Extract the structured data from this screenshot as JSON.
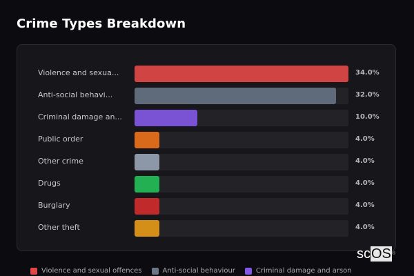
{
  "title": "Crime Types Breakdown",
  "chart_data": {
    "type": "bar",
    "orientation": "horizontal",
    "title": "Crime Types Breakdown",
    "categories": [
      "Violence and sexual offences",
      "Anti-social behaviour",
      "Criminal damage and arson",
      "Public order",
      "Other crime",
      "Drugs",
      "Burglary",
      "Other theft"
    ],
    "display_labels": [
      "Violence and sexua...",
      "Anti-social behavi...",
      "Criminal damage an...",
      "Public order",
      "Other crime",
      "Drugs",
      "Burglary",
      "Other theft"
    ],
    "values": [
      34.0,
      32.0,
      10.0,
      4.0,
      4.0,
      4.0,
      4.0,
      4.0
    ],
    "value_labels": [
      "34.0%",
      "32.0%",
      "10.0%",
      "4.0%",
      "4.0%",
      "4.0%",
      "4.0%",
      "4.0%"
    ],
    "colors": [
      "#d04444",
      "#5f6b7b",
      "#7a52d4",
      "#d96a1c",
      "#8c97a8",
      "#22b053",
      "#c02a2a",
      "#d48f18"
    ],
    "xlabel": "",
    "ylabel": "",
    "grid": false,
    "legend": {
      "position": "bottom",
      "entries": [
        "Violence and sexual offences",
        "Anti-social behaviour",
        "Criminal damage and arson"
      ]
    }
  },
  "rows": [
    {
      "label": "Violence and sexua...",
      "pct": "34.0%"
    },
    {
      "label": "Anti-social behavi...",
      "pct": "32.0%"
    },
    {
      "label": "Criminal damage an...",
      "pct": "10.0%"
    },
    {
      "label": "Public order",
      "pct": "4.0%"
    },
    {
      "label": "Other crime",
      "pct": "4.0%"
    },
    {
      "label": "Drugs",
      "pct": "4.0%"
    },
    {
      "label": "Burglary",
      "pct": "4.0%"
    },
    {
      "label": "Other theft",
      "pct": "4.0%"
    }
  ],
  "legend": [
    {
      "label": "Violence and sexual offences",
      "color": "#e04848"
    },
    {
      "label": "Anti-social behaviour",
      "color": "#6b7787"
    },
    {
      "label": "Criminal damage and arson",
      "color": "#8257e6"
    }
  ],
  "watermark": {
    "prefix": "sc",
    "boxed": "OS",
    "mark": "®"
  }
}
